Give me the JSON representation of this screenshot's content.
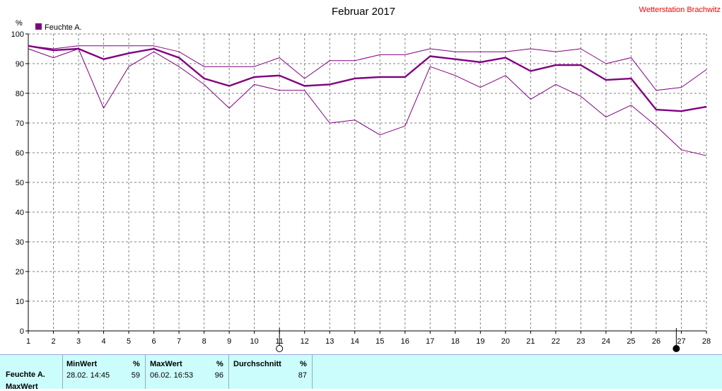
{
  "header": {
    "title": "Februar 2017",
    "station": "Wetterstation Brachwitz"
  },
  "colors": {
    "series": "#800080",
    "grid": "#808080",
    "station": "#ff0000",
    "footer_bg": "#ccfdfd"
  },
  "chart_data": {
    "type": "line",
    "title": "Februar 2017",
    "ylabel": "%",
    "xlabel": "",
    "ylim": [
      0,
      100
    ],
    "xlim": [
      1,
      28
    ],
    "yticks": [
      0,
      10,
      20,
      30,
      40,
      50,
      60,
      70,
      80,
      90,
      100
    ],
    "xticks": [
      1,
      2,
      3,
      4,
      5,
      6,
      7,
      8,
      9,
      10,
      11,
      12,
      13,
      14,
      15,
      16,
      17,
      18,
      19,
      20,
      21,
      22,
      23,
      24,
      25,
      26,
      27,
      28
    ],
    "grid": true,
    "legend": "top-left",
    "legend_label": "Feuchte A.",
    "x": [
      1,
      2,
      3,
      4,
      5,
      6,
      7,
      8,
      9,
      10,
      11,
      12,
      13,
      14,
      15,
      16,
      17,
      18,
      19,
      20,
      21,
      22,
      23,
      24,
      25,
      26,
      27,
      28
    ],
    "series": [
      {
        "name": "Feuchte A.",
        "role": "avg",
        "values": [
          96,
          94.5,
          95,
          91.5,
          93.5,
          95,
          92,
          85,
          82.5,
          85.5,
          86,
          82.5,
          83,
          85,
          85.5,
          85.5,
          92.5,
          91.5,
          90.5,
          92,
          87.5,
          89.5,
          89.5,
          84.5,
          85,
          74.5,
          74,
          75.5
        ]
      },
      {
        "role": "max",
        "values": [
          96,
          95,
          96,
          96,
          96,
          96,
          94,
          89,
          89,
          89,
          92,
          85,
          91,
          91,
          93,
          93,
          95,
          94,
          94,
          94,
          95,
          94,
          95,
          90,
          92,
          81,
          82,
          88
        ]
      },
      {
        "role": "min",
        "values": [
          95,
          92,
          95,
          75,
          89,
          94,
          89,
          83,
          75,
          83,
          81,
          81,
          70,
          71,
          66,
          69,
          89,
          86,
          82,
          86,
          78,
          83,
          79,
          72,
          76,
          69,
          61,
          59
        ]
      }
    ],
    "markers": [
      {
        "x": 11,
        "style": "open-circle"
      },
      {
        "x": 26.8,
        "style": "filled-circle"
      }
    ]
  },
  "footer": {
    "row_label": "Feuchte A.",
    "row_label2": "MaxWert",
    "min": {
      "header": "MinWert",
      "unit": "%",
      "time": "28.02.  14:45",
      "value": "59"
    },
    "max": {
      "header": "MaxWert",
      "unit": "%",
      "time": "06.02.  16:53",
      "value": "96"
    },
    "avg": {
      "header": "Durchschnitt",
      "unit": "%",
      "value": "87"
    }
  }
}
